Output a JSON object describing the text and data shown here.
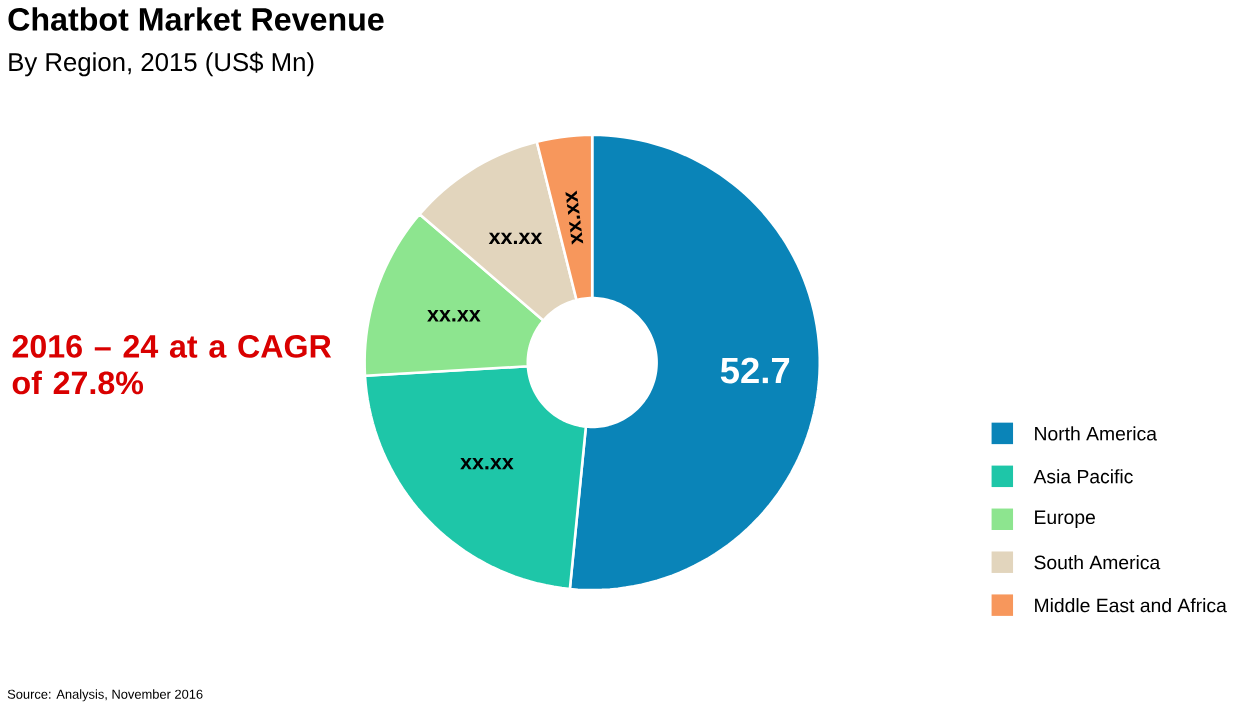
{
  "chart_data": {
    "type": "donut",
    "title": "Chatbot Market Revenue",
    "subtitle": "By Region, 2015 (US$ Mn)",
    "categories": [
      "North America",
      "Asia Pacific",
      "Europe",
      "South America",
      "Middle East and Africa"
    ],
    "values": [
      52.7,
      23,
      12.5,
      10,
      4
    ],
    "value_labels": [
      "52.7",
      "xx.xx",
      "xx.xx",
      "xx.xx",
      "xx.xx"
    ],
    "colors": [
      "#0a84b8",
      "#1ec6a8",
      "#8de58f",
      "#e2d5bd",
      "#f7975c"
    ],
    "legend": "bottom right",
    "annotations": [
      "2016 – 24 at a CAGR of 27.8%",
      "Source: Analysis, November 2016"
    ]
  }
}
